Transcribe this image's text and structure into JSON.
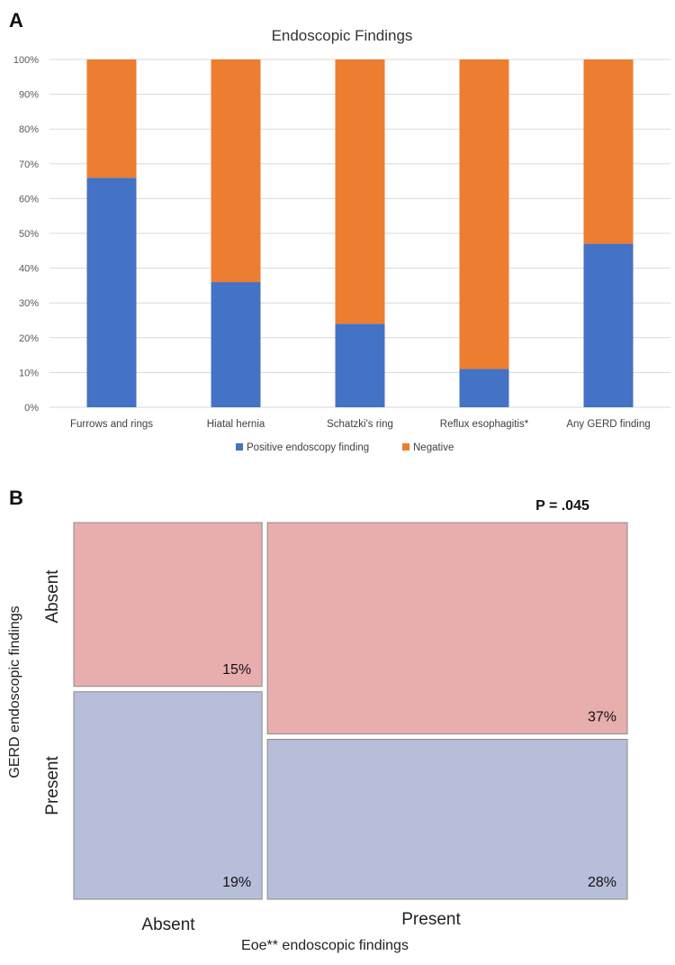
{
  "chart_data": [
    {
      "panel": "A",
      "type": "bar",
      "stacked": true,
      "title": "Endoscopic Findings",
      "categories": [
        "Furrows and rings",
        "Hiatal hernia",
        "Schatzki's ring",
        "Reflux esophagitis*",
        "Any GERD finding"
      ],
      "series": [
        {
          "name": "Positive endoscopy finding",
          "color": "#4472C4",
          "values": [
            66,
            36,
            24,
            11,
            47
          ]
        },
        {
          "name": "Negative",
          "color": "#ED7D31",
          "values": [
            34,
            64,
            76,
            89,
            53
          ]
        }
      ],
      "yticks": [
        "0%",
        "10%",
        "20%",
        "30%",
        "40%",
        "50%",
        "60%",
        "70%",
        "80%",
        "90%",
        "100%"
      ],
      "ylim": [
        0,
        100
      ],
      "grid": true,
      "legend": "bottom"
    },
    {
      "panel": "B",
      "type": "mosaic",
      "annotation": "P = .045",
      "xlabel": "Eoe** endoscopic findings",
      "ylabel": "GERD endoscopic findings",
      "x_categories": [
        "Absent",
        "Present"
      ],
      "y_categories": [
        "Absent",
        "Present"
      ],
      "cells": [
        {
          "x": "Absent",
          "y": "Absent",
          "label": "15%",
          "value": 15
        },
        {
          "x": "Absent",
          "y": "Present",
          "label": "19%",
          "value": 19
        },
        {
          "x": "Present",
          "y": "Absent",
          "label": "37%",
          "value": 37
        },
        {
          "x": "Present",
          "y": "Present",
          "label": "28%",
          "value": 28
        }
      ],
      "colors": {
        "Absent": "#E8AEAE",
        "Present": "#B7BED9",
        "border": "#8a8a8a"
      }
    }
  ],
  "panels": {
    "a": "A",
    "b": "B"
  }
}
